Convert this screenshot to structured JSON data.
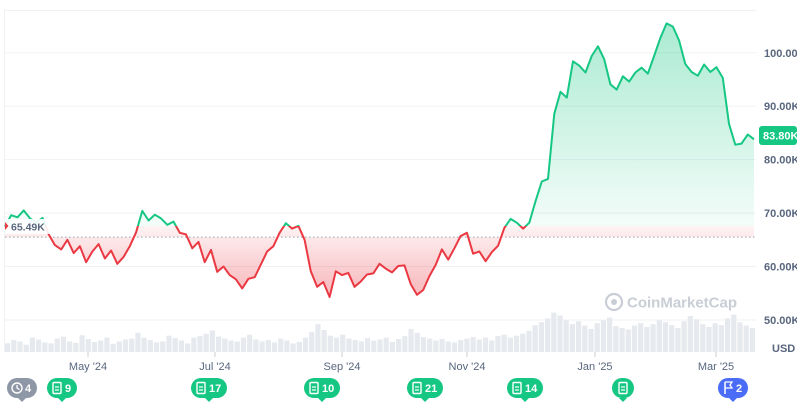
{
  "chart_data": {
    "type": "area",
    "ylim": [
      44000,
      108000
    ],
    "y_ticks": [
      {
        "value": 50000,
        "label": "50.00K"
      },
      {
        "value": 60000,
        "label": "60.00K"
      },
      {
        "value": 70000,
        "label": "70.00K"
      },
      {
        "value": 80000,
        "label": "80.00K"
      },
      {
        "value": 90000,
        "label": "90.00K"
      },
      {
        "value": 100000,
        "label": "100.00K"
      }
    ],
    "x_ticks": [
      "May '24",
      "Jul '24",
      "Sep '24",
      "Nov '24",
      "Jan '25",
      "Mar '25"
    ],
    "volume_label": "USD",
    "baseline": {
      "value": 65490,
      "label": "65.49K"
    },
    "current": {
      "value": 83800,
      "label": "83.80K"
    },
    "colors": {
      "up": "#16c784",
      "down": "#ea3943",
      "marker": "#4a6cf7",
      "muted": "#8e97a6"
    },
    "x": [
      0,
      3,
      6,
      9,
      12,
      15,
      18,
      21,
      24,
      27,
      30,
      33,
      36,
      39,
      42,
      45,
      48,
      51,
      54,
      57,
      60,
      63,
      66,
      69,
      72,
      75,
      78,
      81,
      84,
      87,
      90,
      93,
      96,
      99,
      102,
      105,
      108,
      111,
      114,
      117,
      120,
      123,
      126,
      129,
      132,
      135,
      138,
      141,
      144,
      147,
      150,
      153,
      156,
      159,
      162,
      165,
      168,
      171,
      174,
      177,
      180,
      183,
      186,
      189,
      192,
      195,
      198,
      201,
      204,
      207,
      210,
      213,
      216,
      219,
      222,
      225,
      228,
      231,
      234,
      237,
      240,
      243,
      246,
      249,
      252,
      255,
      258,
      261,
      264,
      267,
      270,
      273,
      276,
      279,
      282,
      285,
      288,
      291,
      294,
      297,
      300,
      303,
      306,
      309,
      312,
      315,
      318,
      321,
      324,
      327,
      330,
      333,
      336,
      339,
      342,
      345,
      348,
      351,
      354,
      357,
      360
    ],
    "values": [
      67500,
      69600,
      69200,
      70500,
      69000,
      68200,
      69100,
      66000,
      64000,
      63200,
      65000,
      62500,
      63800,
      60800,
      62800,
      64200,
      61500,
      63000,
      60500,
      61800,
      63800,
      66400,
      70400,
      68600,
      69700,
      69000,
      67800,
      68400,
      66300,
      66000,
      63400,
      64600,
      60800,
      63100,
      59000,
      60000,
      58400,
      57600,
      55900,
      57700,
      58000,
      60400,
      62800,
      63800,
      66300,
      68100,
      67100,
      67600,
      65000,
      59100,
      56200,
      57100,
      54300,
      59100,
      58400,
      58800,
      56200,
      57200,
      58500,
      58700,
      60500,
      59600,
      58900,
      60100,
      60200,
      56700,
      54700,
      55600,
      58200,
      60300,
      63200,
      61300,
      63400,
      65700,
      66300,
      62400,
      62800,
      61000,
      62700,
      63900,
      67200,
      68900,
      68200,
      67100,
      68200,
      72200,
      75900,
      76400,
      88600,
      92700,
      91600,
      98400,
      97600,
      96300,
      99400,
      101200,
      98800,
      94100,
      93100,
      95600,
      94600,
      96300,
      97200,
      96100,
      99400,
      102800,
      105500,
      104900,
      102300,
      97900,
      96400,
      95700,
      97800,
      96400,
      97300,
      95300,
      86700,
      82800,
      83000,
      84700,
      83800
    ],
    "volume_bars": [
      0.18,
      0.25,
      0.22,
      0.15,
      0.3,
      0.26,
      0.2,
      0.18,
      0.28,
      0.32,
      0.22,
      0.19,
      0.35,
      0.27,
      0.21,
      0.24,
      0.3,
      0.17,
      0.22,
      0.26,
      0.28,
      0.4,
      0.3,
      0.25,
      0.2,
      0.22,
      0.34,
      0.29,
      0.24,
      0.18,
      0.3,
      0.33,
      0.38,
      0.45,
      0.32,
      0.28,
      0.24,
      0.22,
      0.3,
      0.36,
      0.26,
      0.22,
      0.25,
      0.2,
      0.28,
      0.24,
      0.18,
      0.21,
      0.3,
      0.42,
      0.58,
      0.46,
      0.34,
      0.3,
      0.36,
      0.28,
      0.25,
      0.22,
      0.29,
      0.24,
      0.26,
      0.3,
      0.21,
      0.27,
      0.33,
      0.48,
      0.4,
      0.31,
      0.28,
      0.24,
      0.27,
      0.22,
      0.2,
      0.25,
      0.28,
      0.31,
      0.26,
      0.3,
      0.24,
      0.33,
      0.36,
      0.3,
      0.34,
      0.38,
      0.44,
      0.56,
      0.62,
      0.7,
      0.82,
      0.76,
      0.66,
      0.58,
      0.64,
      0.55,
      0.48,
      0.6,
      0.66,
      0.72,
      0.54,
      0.5,
      0.47,
      0.55,
      0.6,
      0.52,
      0.58,
      0.66,
      0.62,
      0.56,
      0.5,
      0.64,
      0.75,
      0.68,
      0.58,
      0.52,
      0.6,
      0.56,
      0.7,
      0.78,
      0.62,
      0.55,
      0.5
    ]
  },
  "watermark": "CoinMarketCap",
  "events": [
    {
      "kind": "clock",
      "label": "4",
      "color": "#8e97a6"
    },
    {
      "kind": "doc",
      "label": "9",
      "color": "#16c784"
    },
    {
      "kind": "doc",
      "label": "17",
      "color": "#16c784"
    },
    {
      "kind": "doc",
      "label": "10",
      "color": "#16c784"
    },
    {
      "kind": "doc",
      "label": "21",
      "color": "#16c784"
    },
    {
      "kind": "doc",
      "label": "14",
      "color": "#16c784"
    },
    {
      "kind": "doc",
      "label": "",
      "color": "#16c784"
    },
    {
      "kind": "flag",
      "label": "2",
      "color": "#4a6cf7"
    }
  ]
}
